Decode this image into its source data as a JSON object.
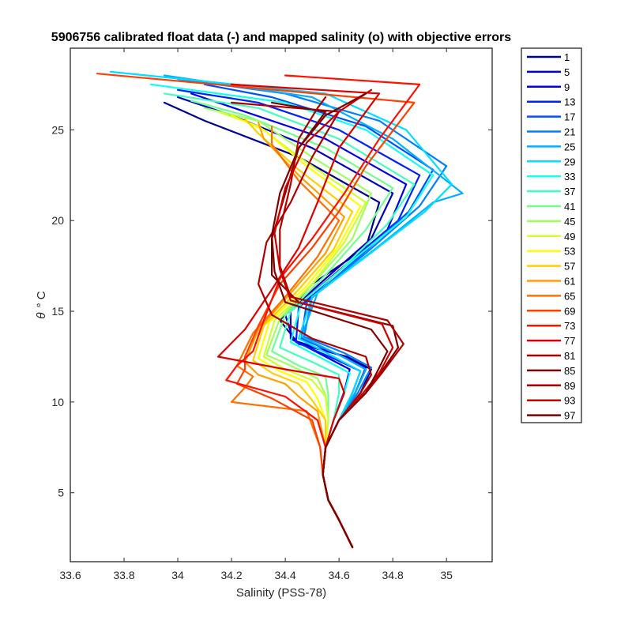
{
  "chart_data": {
    "type": "line",
    "title": "5906756 calibrated float data (-) and mapped salinity (o) with objective errors",
    "xlabel": "Salinity (PSS-78)",
    "ylabel_symbol": "θ",
    "ylabel_unit": "° C",
    "xlim": [
      33.6,
      35.17
    ],
    "ylim": [
      1.2,
      29.5
    ],
    "xticks": [
      "33.6",
      "33.8",
      "34",
      "34.2",
      "34.4",
      "34.6",
      "34.8",
      "35"
    ],
    "yticks": [
      "5",
      "10",
      "15",
      "20",
      "25"
    ],
    "grid": false,
    "legend_position": "outside-right",
    "legend": [
      "1",
      "5",
      "9",
      "13",
      "17",
      "21",
      "25",
      "29",
      "33",
      "37",
      "41",
      "45",
      "49",
      "53",
      "57",
      "61",
      "65",
      "69",
      "73",
      "77",
      "81",
      "85",
      "89",
      "93",
      "97"
    ],
    "colors": [
      "#00008F",
      "#0000BF",
      "#0000EF",
      "#0020FF",
      "#0050FF",
      "#0080FF",
      "#00AFFF",
      "#00DFFF",
      "#10FFEF",
      "#40FFBF",
      "#70FF8F",
      "#9FFF60",
      "#CFFF30",
      "#FFFF00",
      "#FFCF00",
      "#FF9F00",
      "#FF7000",
      "#FF4000",
      "#FF1000",
      "#DF0000",
      "#AF0000",
      "#800000",
      "#B00000",
      "#D00000",
      "#800000"
    ],
    "series": [
      {
        "name": "1",
        "salinity": [
          34.65,
          34.6,
          34.56,
          34.54,
          34.55,
          34.6,
          34.68,
          34.72,
          34.63,
          34.45,
          34.38,
          34.5,
          34.7,
          34.75,
          34.45,
          34.1,
          33.95
        ],
        "theta": [
          2.0,
          3.5,
          4.6,
          6.0,
          7.5,
          9.0,
          10.5,
          11.8,
          12.5,
          13.2,
          14.5,
          16.5,
          18.5,
          21.0,
          23.5,
          25.5,
          26.5
        ]
      },
      {
        "name": "5",
        "salinity": [
          34.65,
          34.6,
          34.56,
          34.54,
          34.55,
          34.6,
          34.66,
          34.7,
          34.6,
          34.43,
          34.4,
          34.55,
          34.72,
          34.8,
          34.5,
          34.2,
          34.0
        ],
        "theta": [
          2.0,
          3.5,
          4.6,
          6.0,
          7.5,
          9.0,
          10.5,
          11.9,
          12.6,
          13.4,
          14.8,
          16.8,
          19.0,
          21.5,
          24.0,
          25.8,
          26.8
        ]
      },
      {
        "name": "9",
        "salinity": [
          34.65,
          34.6,
          34.56,
          34.54,
          34.55,
          34.58,
          34.62,
          34.64,
          34.55,
          34.42,
          34.42,
          34.58,
          34.78,
          34.85,
          34.55,
          34.25,
          34.05
        ],
        "theta": [
          2.0,
          3.5,
          4.6,
          6.0,
          7.5,
          9.0,
          10.6,
          11.8,
          12.5,
          13.5,
          15.0,
          17.0,
          19.5,
          22.0,
          24.5,
          26.0,
          27.0
        ]
      },
      {
        "name": "13",
        "salinity": [
          34.65,
          34.6,
          34.56,
          34.54,
          34.55,
          34.6,
          34.65,
          34.68,
          34.58,
          34.44,
          34.45,
          34.62,
          34.82,
          34.9,
          34.6,
          34.3,
          34.0
        ],
        "theta": [
          2.0,
          3.5,
          4.6,
          6.0,
          7.5,
          9.0,
          10.5,
          11.7,
          12.4,
          13.3,
          15.2,
          17.5,
          20.0,
          22.5,
          25.0,
          26.5,
          27.2
        ]
      },
      {
        "name": "17",
        "salinity": [
          34.65,
          34.6,
          34.56,
          34.54,
          34.55,
          34.6,
          34.66,
          34.7,
          34.6,
          34.46,
          34.48,
          34.66,
          34.86,
          34.95,
          34.7,
          34.35,
          34.1
        ],
        "theta": [
          2.0,
          3.5,
          4.6,
          6.0,
          7.5,
          9.0,
          10.5,
          11.8,
          12.6,
          13.5,
          15.5,
          17.8,
          20.5,
          22.8,
          25.2,
          26.8,
          27.5
        ]
      },
      {
        "name": "21",
        "salinity": [
          34.65,
          34.6,
          34.56,
          34.54,
          34.55,
          34.6,
          34.67,
          34.72,
          34.62,
          34.47,
          34.5,
          34.7,
          34.9,
          35.0,
          34.75,
          34.4,
          34.0
        ],
        "theta": [
          2.0,
          3.5,
          4.6,
          6.0,
          7.5,
          9.0,
          10.5,
          11.9,
          12.7,
          13.6,
          15.8,
          18.2,
          20.8,
          23.0,
          25.5,
          27.0,
          27.8
        ]
      },
      {
        "name": "25",
        "salinity": [
          34.65,
          34.6,
          34.56,
          34.54,
          34.55,
          34.6,
          34.66,
          34.7,
          34.6,
          34.46,
          34.52,
          34.74,
          34.95,
          35.06,
          34.8,
          34.5,
          33.95
        ],
        "theta": [
          2.0,
          3.5,
          4.6,
          6.0,
          7.5,
          9.0,
          10.5,
          11.8,
          12.6,
          13.6,
          16.0,
          18.5,
          21.0,
          21.5,
          24.5,
          26.8,
          28.0
        ]
      },
      {
        "name": "29",
        "salinity": [
          34.65,
          34.6,
          34.56,
          34.54,
          34.55,
          34.6,
          34.65,
          34.68,
          34.58,
          34.45,
          34.5,
          34.7,
          34.92,
          35.02,
          34.85,
          34.55,
          33.75
        ],
        "theta": [
          2.0,
          3.5,
          4.6,
          6.0,
          7.5,
          9.0,
          10.5,
          11.7,
          12.5,
          13.5,
          15.8,
          18.0,
          20.5,
          22.0,
          25.0,
          27.0,
          28.2
        ]
      },
      {
        "name": "33",
        "salinity": [
          34.65,
          34.6,
          34.56,
          34.54,
          34.55,
          34.58,
          34.62,
          34.64,
          34.55,
          34.42,
          34.46,
          34.65,
          34.85,
          34.95,
          34.7,
          34.4,
          33.9
        ],
        "theta": [
          2.0,
          3.5,
          4.6,
          6.0,
          7.5,
          9.0,
          10.5,
          11.6,
          12.3,
          13.3,
          15.5,
          17.8,
          20.2,
          22.5,
          25.0,
          26.5,
          27.5
        ]
      },
      {
        "name": "37",
        "salinity": [
          34.65,
          34.6,
          34.56,
          34.54,
          34.55,
          34.58,
          34.6,
          34.6,
          34.5,
          34.38,
          34.42,
          34.6,
          34.78,
          34.88,
          34.6,
          34.3,
          33.95
        ],
        "theta": [
          2.0,
          3.5,
          4.6,
          6.0,
          7.5,
          9.0,
          10.5,
          11.5,
          12.2,
          13.0,
          15.0,
          17.2,
          19.8,
          22.0,
          24.5,
          26.2,
          27.0
        ]
      },
      {
        "name": "41",
        "salinity": [
          34.65,
          34.6,
          34.56,
          34.54,
          34.55,
          34.56,
          34.56,
          34.55,
          34.45,
          34.35,
          34.4,
          34.55,
          34.7,
          34.8,
          34.55,
          34.25,
          34.05
        ],
        "theta": [
          2.0,
          3.5,
          4.6,
          6.0,
          7.5,
          9.0,
          10.4,
          11.4,
          12.0,
          12.8,
          14.8,
          17.0,
          19.5,
          21.8,
          24.0,
          25.8,
          26.6
        ]
      },
      {
        "name": "45",
        "salinity": [
          34.65,
          34.6,
          34.56,
          34.54,
          34.55,
          34.56,
          34.55,
          34.52,
          34.42,
          34.33,
          34.38,
          34.52,
          34.65,
          34.72,
          34.5,
          34.3,
          34.1
        ],
        "theta": [
          2.0,
          3.5,
          4.6,
          6.0,
          7.5,
          9.0,
          10.4,
          11.3,
          12.0,
          12.6,
          14.6,
          16.8,
          19.0,
          21.5,
          23.5,
          25.5,
          26.2
        ]
      },
      {
        "name": "49",
        "salinity": [
          34.65,
          34.6,
          34.56,
          34.54,
          34.55,
          34.56,
          34.55,
          34.5,
          34.4,
          34.32,
          34.36,
          34.5,
          34.62,
          34.7,
          34.48,
          34.3,
          34.15
        ],
        "theta": [
          2.0,
          3.5,
          4.6,
          6.0,
          7.5,
          9.0,
          10.3,
          11.2,
          11.8,
          12.5,
          14.5,
          16.5,
          18.8,
          21.0,
          23.2,
          25.2,
          26.0
        ]
      },
      {
        "name": "53",
        "salinity": [
          34.65,
          34.6,
          34.56,
          34.54,
          34.55,
          34.55,
          34.52,
          34.48,
          34.38,
          34.3,
          34.34,
          34.48,
          34.6,
          34.68,
          34.48,
          34.32,
          34.2
        ],
        "theta": [
          2.0,
          3.5,
          4.6,
          6.0,
          7.5,
          9.0,
          10.2,
          11.1,
          11.7,
          12.4,
          14.4,
          16.4,
          18.6,
          20.8,
          23.0,
          25.0,
          25.8
        ]
      },
      {
        "name": "57",
        "salinity": [
          34.65,
          34.6,
          34.56,
          34.54,
          34.55,
          34.55,
          34.5,
          34.45,
          34.35,
          34.28,
          34.32,
          34.45,
          34.58,
          34.65,
          34.45,
          34.3,
          34.25
        ],
        "theta": [
          2.0,
          3.5,
          4.6,
          6.0,
          7.5,
          9.0,
          10.1,
          11.0,
          11.6,
          12.3,
          14.2,
          16.2,
          18.4,
          20.5,
          22.8,
          24.8,
          25.6
        ]
      },
      {
        "name": "61",
        "salinity": [
          34.65,
          34.6,
          34.56,
          34.54,
          34.55,
          34.52,
          34.45,
          34.4,
          34.3,
          34.25,
          34.3,
          34.42,
          34.55,
          34.62,
          34.45,
          34.32,
          34.3
        ],
        "theta": [
          2.0,
          3.5,
          4.6,
          6.0,
          7.5,
          9.5,
          10.3,
          11.0,
          11.5,
          12.2,
          14.0,
          16.0,
          18.2,
          20.2,
          22.5,
          24.5,
          25.4
        ]
      },
      {
        "name": "65",
        "salinity": [
          34.65,
          34.6,
          34.56,
          34.54,
          34.53,
          34.48,
          34.2,
          34.25,
          34.28,
          34.22,
          34.28,
          34.4,
          34.52,
          34.6,
          34.45,
          34.35,
          34.35
        ],
        "theta": [
          2.0,
          3.5,
          4.6,
          6.0,
          7.5,
          9.5,
          10.0,
          10.8,
          11.4,
          12.0,
          13.8,
          15.8,
          18.0,
          20.0,
          22.2,
          24.2,
          25.2
        ]
      },
      {
        "name": "69",
        "salinity": [
          34.65,
          34.6,
          34.56,
          34.54,
          34.53,
          34.5,
          34.35,
          34.22,
          34.25,
          34.25,
          34.3,
          34.38,
          34.5,
          34.6,
          34.7,
          34.88,
          33.7
        ],
        "theta": [
          2.0,
          3.5,
          4.6,
          6.0,
          7.5,
          9.0,
          10.2,
          11.0,
          11.8,
          12.5,
          14.2,
          16.5,
          18.5,
          20.5,
          23.0,
          26.5,
          28.1
        ]
      },
      {
        "name": "73",
        "salinity": [
          34.65,
          34.6,
          34.56,
          34.54,
          34.55,
          34.52,
          34.4,
          34.18,
          34.22,
          34.28,
          34.32,
          34.38,
          34.5,
          34.62,
          34.75,
          34.9,
          34.4
        ],
        "theta": [
          2.0,
          3.5,
          4.6,
          6.0,
          7.5,
          9.0,
          10.3,
          11.2,
          12.0,
          12.8,
          14.5,
          16.8,
          19.0,
          21.5,
          24.5,
          27.5,
          28.0
        ]
      },
      {
        "name": "77",
        "salinity": [
          34.65,
          34.6,
          34.56,
          34.54,
          34.55,
          34.58,
          34.62,
          34.6,
          34.4,
          34.15,
          34.25,
          34.35,
          34.45,
          34.52,
          34.6,
          34.75,
          34.2
        ],
        "theta": [
          2.0,
          3.5,
          4.6,
          6.0,
          7.5,
          9.0,
          10.5,
          11.3,
          11.8,
          12.5,
          14.0,
          16.2,
          18.5,
          21.0,
          24.0,
          27.0,
          27.5
        ]
      },
      {
        "name": "81",
        "salinity": [
          34.65,
          34.6,
          34.56,
          34.54,
          34.55,
          34.6,
          34.68,
          34.72,
          34.7,
          34.5,
          34.35,
          34.3,
          34.33,
          34.42,
          34.5,
          34.6,
          34.2
        ],
        "theta": [
          2.0,
          3.5,
          4.6,
          6.0,
          7.5,
          9.0,
          10.5,
          11.5,
          12.5,
          13.5,
          14.8,
          16.5,
          18.8,
          21.0,
          23.5,
          26.0,
          26.5
        ]
      },
      {
        "name": "85",
        "salinity": [
          34.65,
          34.6,
          34.56,
          34.54,
          34.55,
          34.6,
          34.7,
          34.75,
          34.82,
          34.8,
          34.45,
          34.35,
          34.35,
          34.4,
          34.45,
          34.55,
          34.35
        ],
        "theta": [
          2.0,
          3.5,
          4.6,
          6.0,
          7.5,
          9.0,
          10.5,
          11.5,
          13.0,
          14.2,
          15.5,
          17.0,
          19.0,
          21.5,
          24.0,
          26.0,
          26.5
        ]
      },
      {
        "name": "89",
        "salinity": [
          34.65,
          34.6,
          34.56,
          34.54,
          34.55,
          34.6,
          34.7,
          34.76,
          34.84,
          34.78,
          34.42,
          34.38,
          34.38,
          34.42,
          34.45,
          34.52,
          34.55
        ],
        "theta": [
          2.0,
          3.5,
          4.6,
          6.0,
          7.5,
          9.0,
          10.5,
          11.6,
          13.2,
          14.5,
          15.8,
          17.5,
          19.5,
          22.0,
          24.5,
          26.2,
          26.8
        ]
      },
      {
        "name": "93",
        "salinity": [
          34.65,
          34.6,
          34.56,
          34.54,
          34.55,
          34.6,
          34.69,
          34.75,
          34.8,
          34.76,
          34.42,
          34.38,
          34.36,
          34.4,
          34.48,
          34.6,
          34.72
        ],
        "theta": [
          2.0,
          3.5,
          4.6,
          6.0,
          7.5,
          9.0,
          10.5,
          11.6,
          13.0,
          14.3,
          15.6,
          17.3,
          19.3,
          21.8,
          24.3,
          26.0,
          27.2
        ]
      },
      {
        "name": "97",
        "salinity": [
          34.65,
          34.6,
          34.56,
          34.54,
          34.55,
          34.6,
          34.7,
          34.74,
          34.78,
          34.72,
          34.4,
          34.36,
          34.35,
          34.38,
          34.45,
          34.55,
          34.7
        ],
        "theta": [
          2.0,
          3.5,
          4.6,
          6.0,
          7.5,
          9.0,
          10.5,
          11.6,
          12.8,
          14.0,
          15.5,
          17.2,
          19.2,
          21.5,
          24.0,
          25.8,
          27.0
        ]
      }
    ]
  }
}
